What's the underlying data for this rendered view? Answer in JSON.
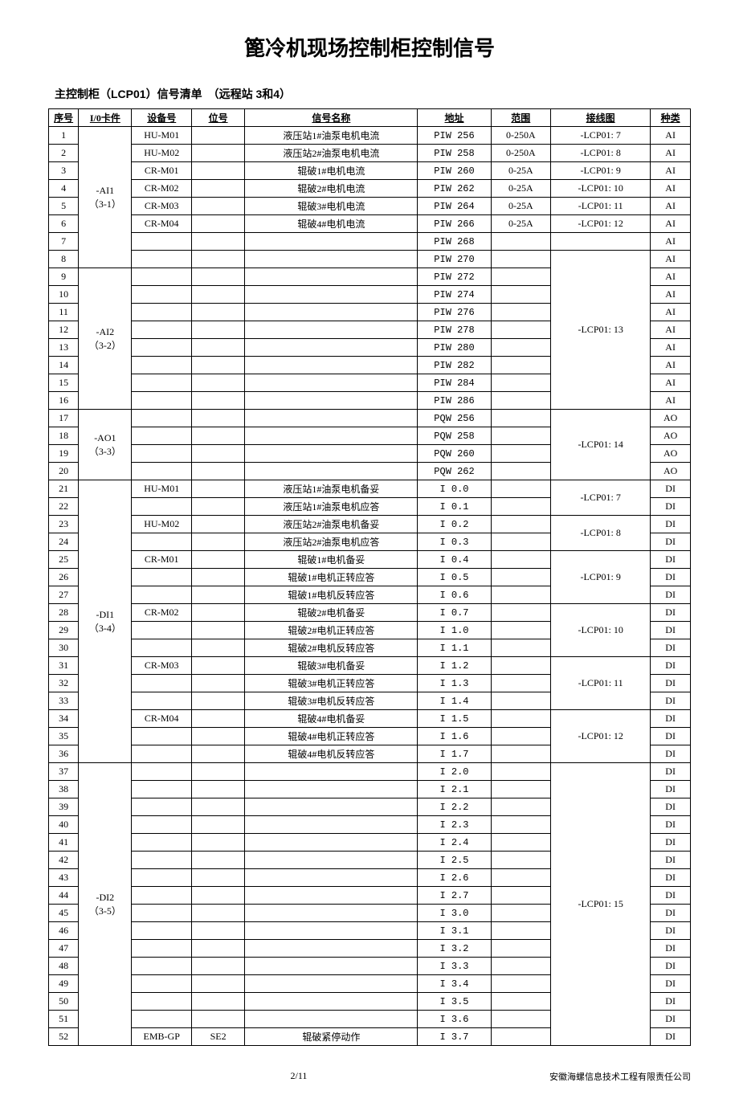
{
  "title": "篦冷机现场控制柜控制信号",
  "subtitle": "主控制柜（LCP01）信号清单　（远程站 3和4）",
  "footer": {
    "page": "2/11",
    "company": "安徽海螺信息技术工程有限责任公司"
  },
  "headers": [
    "序号",
    "I/0卡件",
    "设备号",
    "位号",
    "信号名称",
    "地址",
    "范围",
    "接线图",
    "种类"
  ],
  "io_groups": [
    {
      "label": "-AI1\n（3-1）",
      "span": 8
    },
    {
      "label": "-AI2\n（3-2）",
      "span": 8
    },
    {
      "label": "-AO1\n（3-3）",
      "span": 4
    },
    {
      "label": "-DI1\n（3-4）",
      "span": 16
    },
    {
      "label": "-DI2\n（3-5）",
      "span": 16
    }
  ],
  "wir_groups": [
    {
      "label": "-LCP01: 7",
      "span": 1
    },
    {
      "label": "-LCP01: 8",
      "span": 1
    },
    {
      "label": "-LCP01: 9",
      "span": 1
    },
    {
      "label": "-LCP01: 10",
      "span": 1
    },
    {
      "label": "-LCP01: 11",
      "span": 1
    },
    {
      "label": "-LCP01: 12",
      "span": 1
    },
    {
      "label": "",
      "span": 1
    },
    {
      "label": "-LCP01: 13",
      "span": 9
    },
    {
      "label": "-LCP01: 14",
      "span": 4
    },
    {
      "label": "-LCP01: 7",
      "span": 2
    },
    {
      "label": "-LCP01: 8",
      "span": 2
    },
    {
      "label": "-LCP01: 9",
      "span": 3
    },
    {
      "label": "-LCP01: 10",
      "span": 3
    },
    {
      "label": "-LCP01: 11",
      "span": 3
    },
    {
      "label": "-LCP01: 12",
      "span": 3
    },
    {
      "label": "-LCP01: 15",
      "span": 16
    }
  ],
  "rows": [
    {
      "n": 1,
      "dev": "HU-M01",
      "pos": "",
      "sig": "液压站1#油泵电机电流",
      "addr": "PIW 256",
      "rng": "0-250A",
      "typ": "AI"
    },
    {
      "n": 2,
      "dev": "HU-M02",
      "pos": "",
      "sig": "液压站2#油泵电机电流",
      "addr": "PIW 258",
      "rng": "0-250A",
      "typ": "AI"
    },
    {
      "n": 3,
      "dev": "CR-M01",
      "pos": "",
      "sig": "辊破1#电机电流",
      "addr": "PIW 260",
      "rng": "0-25A",
      "typ": "AI"
    },
    {
      "n": 4,
      "dev": "CR-M02",
      "pos": "",
      "sig": "辊破2#电机电流",
      "addr": "PIW 262",
      "rng": "0-25A",
      "typ": "AI"
    },
    {
      "n": 5,
      "dev": "CR-M03",
      "pos": "",
      "sig": "辊破3#电机电流",
      "addr": "PIW 264",
      "rng": "0-25A",
      "typ": "AI"
    },
    {
      "n": 6,
      "dev": "CR-M04",
      "pos": "",
      "sig": "辊破4#电机电流",
      "addr": "PIW 266",
      "rng": "0-25A",
      "typ": "AI"
    },
    {
      "n": 7,
      "dev": "",
      "pos": "",
      "sig": "",
      "addr": "PIW 268",
      "rng": "",
      "typ": "AI"
    },
    {
      "n": 8,
      "dev": "",
      "pos": "",
      "sig": "",
      "addr": "PIW 270",
      "rng": "",
      "typ": "AI"
    },
    {
      "n": 9,
      "dev": "",
      "pos": "",
      "sig": "",
      "addr": "PIW 272",
      "rng": "",
      "typ": "AI"
    },
    {
      "n": 10,
      "dev": "",
      "pos": "",
      "sig": "",
      "addr": "PIW 274",
      "rng": "",
      "typ": "AI"
    },
    {
      "n": 11,
      "dev": "",
      "pos": "",
      "sig": "",
      "addr": "PIW 276",
      "rng": "",
      "typ": "AI"
    },
    {
      "n": 12,
      "dev": "",
      "pos": "",
      "sig": "",
      "addr": "PIW 278",
      "rng": "",
      "typ": "AI"
    },
    {
      "n": 13,
      "dev": "",
      "pos": "",
      "sig": "",
      "addr": "PIW 280",
      "rng": "",
      "typ": "AI"
    },
    {
      "n": 14,
      "dev": "",
      "pos": "",
      "sig": "",
      "addr": "PIW 282",
      "rng": "",
      "typ": "AI"
    },
    {
      "n": 15,
      "dev": "",
      "pos": "",
      "sig": "",
      "addr": "PIW 284",
      "rng": "",
      "typ": "AI"
    },
    {
      "n": 16,
      "dev": "",
      "pos": "",
      "sig": "",
      "addr": "PIW 286",
      "rng": "",
      "typ": "AI"
    },
    {
      "n": 17,
      "dev": "",
      "pos": "",
      "sig": "",
      "addr": "PQW 256",
      "rng": "",
      "typ": "AO"
    },
    {
      "n": 18,
      "dev": "",
      "pos": "",
      "sig": "",
      "addr": "PQW 258",
      "rng": "",
      "typ": "AO"
    },
    {
      "n": 19,
      "dev": "",
      "pos": "",
      "sig": "",
      "addr": "PQW 260",
      "rng": "",
      "typ": "AO"
    },
    {
      "n": 20,
      "dev": "",
      "pos": "",
      "sig": "",
      "addr": "PQW 262",
      "rng": "",
      "typ": "AO"
    },
    {
      "n": 21,
      "dev": "HU-M01",
      "pos": "",
      "sig": "液压站1#油泵电机备妥",
      "addr": "I 0.0",
      "rng": "",
      "typ": "DI"
    },
    {
      "n": 22,
      "dev": "",
      "pos": "",
      "sig": "液压站1#油泵电机应答",
      "addr": "I 0.1",
      "rng": "",
      "typ": "DI"
    },
    {
      "n": 23,
      "dev": "HU-M02",
      "pos": "",
      "sig": "液压站2#油泵电机备妥",
      "addr": "I 0.2",
      "rng": "",
      "typ": "DI"
    },
    {
      "n": 24,
      "dev": "",
      "pos": "",
      "sig": "液压站2#油泵电机应答",
      "addr": "I 0.3",
      "rng": "",
      "typ": "DI"
    },
    {
      "n": 25,
      "dev": "CR-M01",
      "pos": "",
      "sig": "辊破1#电机备妥",
      "addr": "I 0.4",
      "rng": "",
      "typ": "DI"
    },
    {
      "n": 26,
      "dev": "",
      "pos": "",
      "sig": "辊破1#电机正转应答",
      "addr": "I 0.5",
      "rng": "",
      "typ": "DI"
    },
    {
      "n": 27,
      "dev": "",
      "pos": "",
      "sig": "辊破1#电机反转应答",
      "addr": "I 0.6",
      "rng": "",
      "typ": "DI"
    },
    {
      "n": 28,
      "dev": "CR-M02",
      "pos": "",
      "sig": "辊破2#电机备妥",
      "addr": "I 0.7",
      "rng": "",
      "typ": "DI"
    },
    {
      "n": 29,
      "dev": "",
      "pos": "",
      "sig": "辊破2#电机正转应答",
      "addr": "I 1.0",
      "rng": "",
      "typ": "DI"
    },
    {
      "n": 30,
      "dev": "",
      "pos": "",
      "sig": "辊破2#电机反转应答",
      "addr": "I 1.1",
      "rng": "",
      "typ": "DI"
    },
    {
      "n": 31,
      "dev": "CR-M03",
      "pos": "",
      "sig": "辊破3#电机备妥",
      "addr": "I 1.2",
      "rng": "",
      "typ": "DI"
    },
    {
      "n": 32,
      "dev": "",
      "pos": "",
      "sig": "辊破3#电机正转应答",
      "addr": "I 1.3",
      "rng": "",
      "typ": "DI"
    },
    {
      "n": 33,
      "dev": "",
      "pos": "",
      "sig": "辊破3#电机反转应答",
      "addr": "I 1.4",
      "rng": "",
      "typ": "DI"
    },
    {
      "n": 34,
      "dev": "CR-M04",
      "pos": "",
      "sig": "辊破4#电机备妥",
      "addr": "I 1.5",
      "rng": "",
      "typ": "DI"
    },
    {
      "n": 35,
      "dev": "",
      "pos": "",
      "sig": "辊破4#电机正转应答",
      "addr": "I 1.6",
      "rng": "",
      "typ": "DI"
    },
    {
      "n": 36,
      "dev": "",
      "pos": "",
      "sig": "辊破4#电机反转应答",
      "addr": "I 1.7",
      "rng": "",
      "typ": "DI"
    },
    {
      "n": 37,
      "dev": "",
      "pos": "",
      "sig": "",
      "addr": "I 2.0",
      "rng": "",
      "typ": "DI"
    },
    {
      "n": 38,
      "dev": "",
      "pos": "",
      "sig": "",
      "addr": "I 2.1",
      "rng": "",
      "typ": "DI"
    },
    {
      "n": 39,
      "dev": "",
      "pos": "",
      "sig": "",
      "addr": "I 2.2",
      "rng": "",
      "typ": "DI"
    },
    {
      "n": 40,
      "dev": "",
      "pos": "",
      "sig": "",
      "addr": "I 2.3",
      "rng": "",
      "typ": "DI"
    },
    {
      "n": 41,
      "dev": "",
      "pos": "",
      "sig": "",
      "addr": "I 2.4",
      "rng": "",
      "typ": "DI"
    },
    {
      "n": 42,
      "dev": "",
      "pos": "",
      "sig": "",
      "addr": "I 2.5",
      "rng": "",
      "typ": "DI"
    },
    {
      "n": 43,
      "dev": "",
      "pos": "",
      "sig": "",
      "addr": "I 2.6",
      "rng": "",
      "typ": "DI"
    },
    {
      "n": 44,
      "dev": "",
      "pos": "",
      "sig": "",
      "addr": "I 2.7",
      "rng": "",
      "typ": "DI"
    },
    {
      "n": 45,
      "dev": "",
      "pos": "",
      "sig": "",
      "addr": "I 3.0",
      "rng": "",
      "typ": "DI"
    },
    {
      "n": 46,
      "dev": "",
      "pos": "",
      "sig": "",
      "addr": "I 3.1",
      "rng": "",
      "typ": "DI"
    },
    {
      "n": 47,
      "dev": "",
      "pos": "",
      "sig": "",
      "addr": "I 3.2",
      "rng": "",
      "typ": "DI"
    },
    {
      "n": 48,
      "dev": "",
      "pos": "",
      "sig": "",
      "addr": "I 3.3",
      "rng": "",
      "typ": "DI"
    },
    {
      "n": 49,
      "dev": "",
      "pos": "",
      "sig": "",
      "addr": "I 3.4",
      "rng": "",
      "typ": "DI"
    },
    {
      "n": 50,
      "dev": "",
      "pos": "",
      "sig": "",
      "addr": "I 3.5",
      "rng": "",
      "typ": "DI"
    },
    {
      "n": 51,
      "dev": "",
      "pos": "",
      "sig": "",
      "addr": "I 3.6",
      "rng": "",
      "typ": "DI"
    },
    {
      "n": 52,
      "dev": "EMB-GP",
      "pos": "SE2",
      "sig": "辊破紧停动作",
      "addr": "I 3.7",
      "rng": "",
      "typ": "DI"
    }
  ]
}
